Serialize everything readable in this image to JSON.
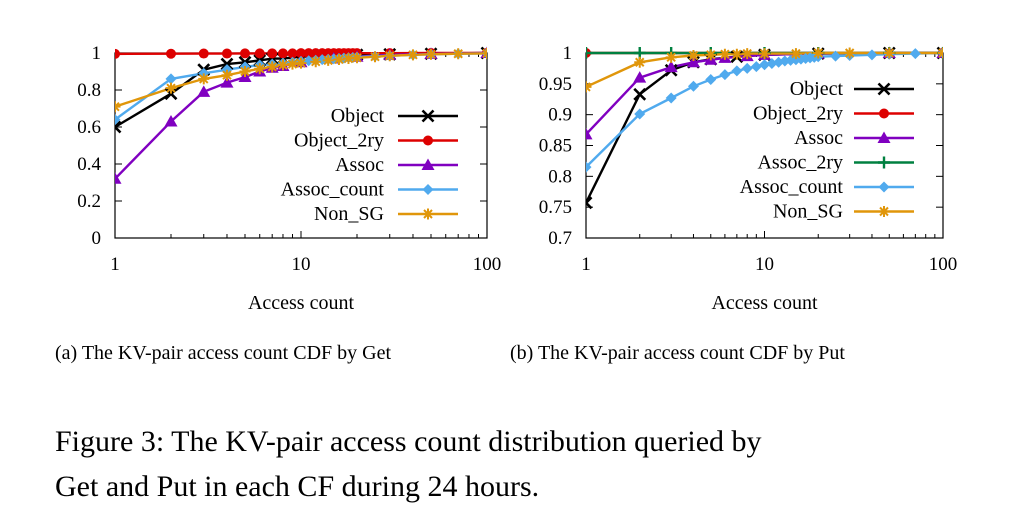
{
  "figure": {
    "caption_line1": "Figure 3: The KV-pair access count distribution queried by",
    "caption_line2": "Get and Put in each CF during 24 hours."
  },
  "chart_data": [
    {
      "type": "line",
      "subcaption": "(a)  The KV-pair access count CDF by Get",
      "xlabel": "Access count",
      "ylabel": "",
      "xscale": "log",
      "xlim": [
        1,
        100
      ],
      "ylim": [
        0,
        1
      ],
      "xticks": [
        1,
        10,
        100
      ],
      "xtick_labels": [
        "1",
        "10",
        "100"
      ],
      "yticks": [
        0,
        0.2,
        0.4,
        0.6,
        0.8,
        1
      ],
      "ytick_labels": [
        "0",
        "0.2",
        "0.4",
        "0.6",
        "0.8",
        "1"
      ],
      "legend_position": "right",
      "series": [
        {
          "name": "Object",
          "color": "#000000",
          "marker": "x",
          "x": [
            1,
            2,
            3,
            4,
            5,
            6,
            7,
            8,
            10,
            15,
            20,
            30,
            50,
            100
          ],
          "y": [
            0.6,
            0.78,
            0.91,
            0.94,
            0.95,
            0.96,
            0.97,
            0.97,
            0.98,
            0.985,
            0.99,
            0.993,
            0.996,
            1.0
          ]
        },
        {
          "name": "Object_2ry",
          "color": "#dd0000",
          "marker": "circle",
          "x": [
            1,
            2,
            3,
            4,
            5,
            6,
            7,
            8,
            9,
            10,
            11,
            12,
            13,
            14,
            15,
            16,
            17,
            18,
            19,
            20,
            30,
            50,
            100
          ],
          "y": [
            0.995,
            0.996,
            0.997,
            0.997,
            0.998,
            0.998,
            0.998,
            0.998,
            0.998,
            0.999,
            0.999,
            0.999,
            0.999,
            0.999,
            0.999,
            0.999,
            0.999,
            0.999,
            0.999,
            0.999,
            0.999,
            1.0,
            1.0
          ]
        },
        {
          "name": "Assoc",
          "color": "#8000c0",
          "marker": "triangle",
          "x": [
            1,
            2,
            3,
            4,
            5,
            6,
            7,
            8,
            10,
            15,
            20,
            30,
            50,
            100
          ],
          "y": [
            0.32,
            0.63,
            0.79,
            0.84,
            0.87,
            0.9,
            0.92,
            0.93,
            0.95,
            0.97,
            0.98,
            0.99,
            0.995,
            1.0
          ]
        },
        {
          "name": "Assoc_count",
          "color": "#50aaee",
          "marker": "diamond",
          "x": [
            1,
            2,
            3,
            4,
            5,
            6,
            7,
            8,
            9,
            10,
            11,
            12,
            13,
            14,
            15,
            16,
            17,
            18,
            19,
            20,
            25,
            30,
            40,
            50,
            70,
            100
          ],
          "y": [
            0.64,
            0.86,
            0.89,
            0.91,
            0.925,
            0.935,
            0.94,
            0.945,
            0.95,
            0.955,
            0.958,
            0.961,
            0.964,
            0.966,
            0.968,
            0.97,
            0.972,
            0.974,
            0.976,
            0.978,
            0.982,
            0.985,
            0.99,
            0.993,
            0.996,
            0.998
          ]
        },
        {
          "name": "Non_SG",
          "color": "#e0960a",
          "marker": "star",
          "x": [
            1,
            2,
            3,
            4,
            5,
            6,
            7,
            8,
            9,
            10,
            12,
            14,
            16,
            18,
            20,
            25,
            30,
            40,
            50,
            70,
            100
          ],
          "y": [
            0.71,
            0.81,
            0.86,
            0.88,
            0.9,
            0.915,
            0.925,
            0.935,
            0.94,
            0.945,
            0.953,
            0.96,
            0.965,
            0.97,
            0.974,
            0.98,
            0.985,
            0.99,
            0.993,
            0.996,
            0.998
          ]
        }
      ]
    },
    {
      "type": "line",
      "subcaption": "(b)  The KV-pair access count CDF by Put",
      "xlabel": "Access count",
      "ylabel": "",
      "xscale": "log",
      "xlim": [
        1,
        100
      ],
      "ylim": [
        0.7,
        1
      ],
      "xticks": [
        1,
        10,
        100
      ],
      "xtick_labels": [
        "1",
        "10",
        "100"
      ],
      "yticks": [
        0.7,
        0.75,
        0.8,
        0.85,
        0.9,
        0.95,
        1
      ],
      "ytick_labels": [
        "0.7",
        "0.75",
        "0.8",
        "0.85",
        "0.9",
        "0.95",
        "1"
      ],
      "legend_position": "top-right",
      "series": [
        {
          "name": "Object",
          "color": "#000000",
          "marker": "x",
          "x": [
            1,
            2,
            3,
            4,
            5,
            7,
            10,
            20,
            50,
            100
          ],
          "y": [
            0.757,
            0.933,
            0.972,
            0.985,
            0.99,
            0.994,
            0.997,
            0.999,
            1.0,
            1.0
          ]
        },
        {
          "name": "Object_2ry",
          "color": "#dd0000",
          "marker": "circle",
          "x": [
            1,
            100
          ],
          "y": [
            1.0,
            1.0
          ]
        },
        {
          "name": "Assoc",
          "color": "#8000c0",
          "marker": "triangle",
          "x": [
            1,
            2,
            3,
            4,
            5,
            6,
            8,
            10,
            20,
            50,
            100
          ],
          "y": [
            0.868,
            0.96,
            0.977,
            0.985,
            0.989,
            0.992,
            0.995,
            0.997,
            0.999,
            1.0,
            1.0
          ]
        },
        {
          "name": "Assoc_2ry",
          "color": "#008040",
          "marker": "plus",
          "x": [
            1,
            2,
            3,
            5,
            10,
            20,
            50,
            100
          ],
          "y": [
            1.0,
            1.0,
            1.0,
            1.0,
            1.0,
            1.0,
            1.0,
            1.0
          ]
        },
        {
          "name": "Assoc_count",
          "color": "#50aaee",
          "marker": "diamond",
          "x": [
            1,
            2,
            3,
            4,
            5,
            6,
            7,
            8,
            9,
            10,
            11,
            12,
            13,
            14,
            15,
            16,
            17,
            18,
            19,
            20,
            25,
            30,
            40,
            50,
            70,
            100
          ],
          "y": [
            0.815,
            0.901,
            0.927,
            0.946,
            0.957,
            0.965,
            0.971,
            0.975,
            0.978,
            0.981,
            0.983,
            0.985,
            0.987,
            0.988,
            0.989,
            0.99,
            0.991,
            0.992,
            0.993,
            0.994,
            0.995,
            0.996,
            0.997,
            0.998,
            0.999,
            1.0
          ]
        },
        {
          "name": "Non_SG",
          "color": "#e0960a",
          "marker": "star",
          "x": [
            1,
            2,
            3,
            4,
            5,
            6,
            7,
            8,
            10,
            15,
            20,
            30,
            50,
            100
          ],
          "y": [
            0.945,
            0.985,
            0.993,
            0.996,
            0.997,
            0.998,
            0.998,
            0.999,
            0.999,
            0.999,
            1.0,
            1.0,
            1.0,
            1.0
          ]
        }
      ]
    }
  ]
}
